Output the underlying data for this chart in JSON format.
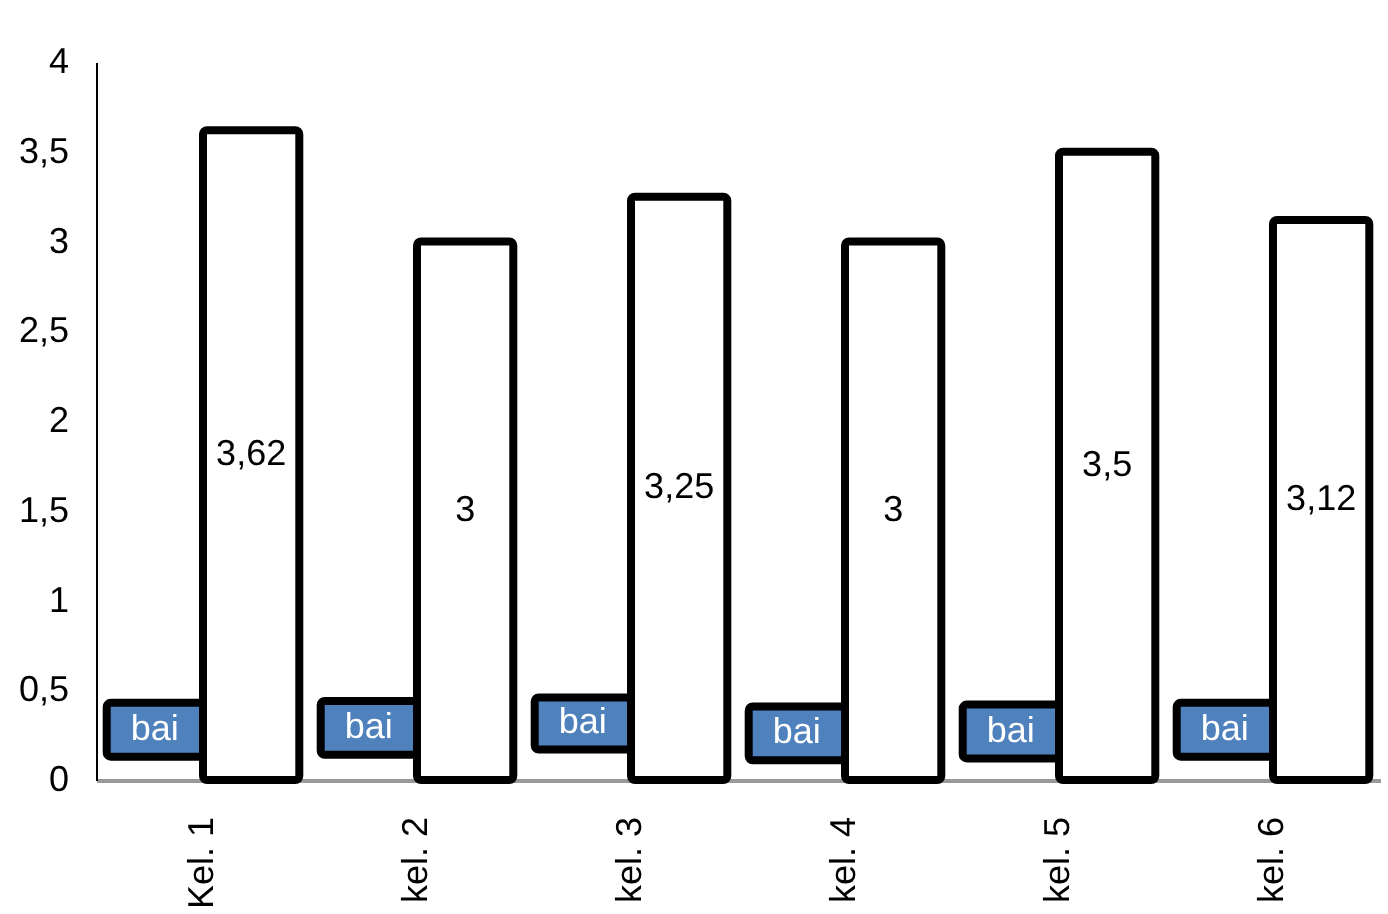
{
  "chart_data": {
    "type": "bar",
    "categories": [
      "Kel. 1",
      "kel. 2",
      "kel. 3",
      "kel. 4",
      "kel. 5",
      "kel. 6"
    ],
    "series": [
      {
        "color": "#4f81bd",
        "base": [
          0.13,
          0.14,
          0.17,
          0.11,
          0.12,
          0.13
        ],
        "values": [
          0.3,
          0.3,
          0.29,
          0.3,
          0.3,
          0.3
        ],
        "value_labels": [
          "bai",
          "bai",
          "bai",
          "bai",
          "bai",
          "bai"
        ]
      },
      {
        "color": "#ffffff",
        "values": [
          3.62,
          3,
          3.25,
          3,
          3.5,
          3.12
        ],
        "value_labels": [
          "3,62",
          "3",
          "3,25",
          "3",
          "3,5",
          "3,12"
        ]
      }
    ],
    "ylim": [
      0,
      4
    ],
    "yticks": [
      0,
      {
        "value": 0.5,
        "label": "0,5"
      },
      1,
      {
        "value": 1.5,
        "label": "1,5"
      },
      2,
      {
        "value": 2.5,
        "label": "2,5"
      },
      3,
      {
        "value": 3.5,
        "label": "3,5"
      },
      4
    ],
    "grid": false,
    "legend": false
  }
}
